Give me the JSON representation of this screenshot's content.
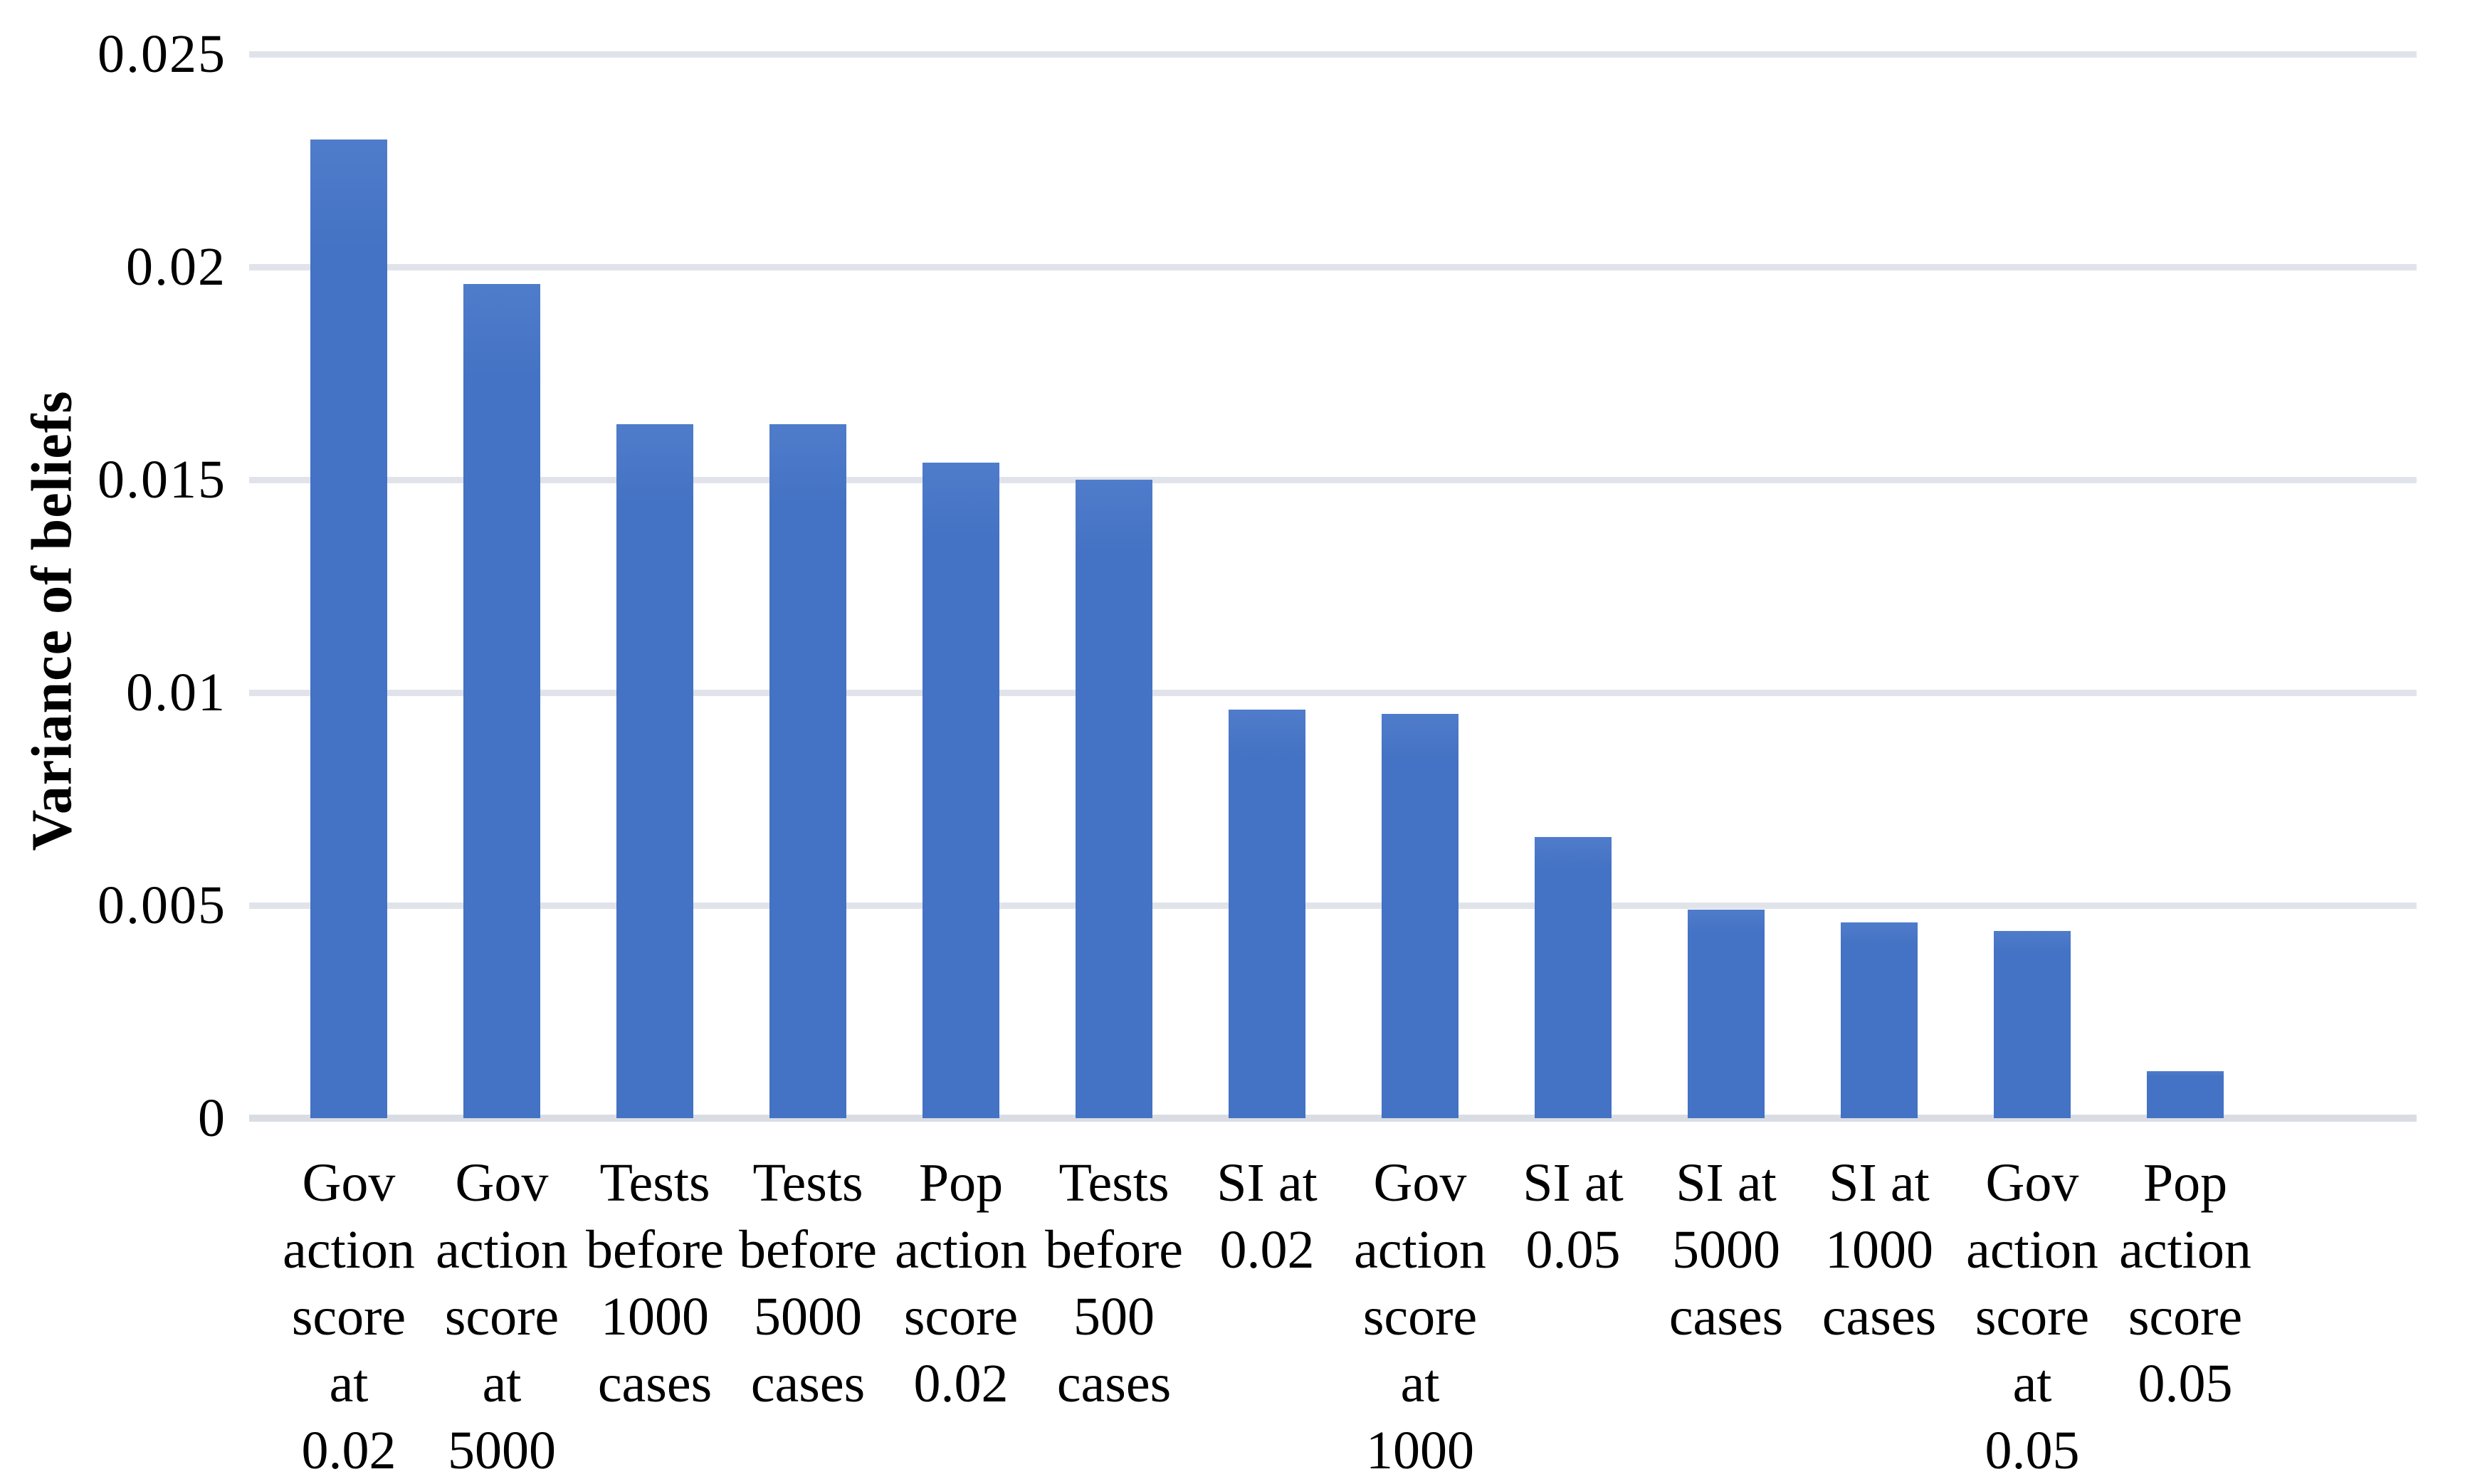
{
  "chart_data": {
    "type": "bar",
    "title": "",
    "ylabel": "Variance of beliefs",
    "xlabel": "",
    "ylim": [
      0,
      0.025
    ],
    "yticks": [
      0,
      0.005,
      0.01,
      0.015,
      0.02,
      0.025
    ],
    "ytick_labels": [
      "0",
      "0.005",
      "0.01",
      "0.015",
      "0.02",
      "0.025"
    ],
    "grid": "horizontal-only",
    "legend_position": "none",
    "bar_color": "#4472C4",
    "gridline_color": "#E0E4EA",
    "axis_line_color": "#D9DDE3",
    "text_color": "#000000",
    "categories": [
      "Gov action score at 0.02",
      "Gov action score at 5000",
      "Tests before 1000 cases",
      "Tests before 5000 cases",
      "Pop action score 0.02",
      "Tests before 500 cases",
      "SI at 0.02",
      "Gov action score at 1000",
      "SI at 0.05",
      "SI at 5000 cases",
      "SI at 1000 cases",
      "Gov action score at 0.05",
      "Pop action score 0.05"
    ],
    "category_label_lines": [
      [
        "Gov",
        "action",
        "score",
        "at",
        "0.02"
      ],
      [
        "Gov",
        "action",
        "score",
        "at",
        "5000"
      ],
      [
        "Tests",
        "before",
        "1000",
        "cases"
      ],
      [
        "Tests",
        "before",
        "5000",
        "cases"
      ],
      [
        "Pop",
        "action",
        "score",
        "0.02"
      ],
      [
        "Tests",
        "before",
        "500",
        "cases"
      ],
      [
        "SI at",
        "0.02"
      ],
      [
        "Gov",
        "action",
        "score",
        "at",
        "1000"
      ],
      [
        "SI at",
        "0.05"
      ],
      [
        "SI at",
        "5000",
        "cases"
      ],
      [
        "SI at",
        "1000",
        "cases"
      ],
      [
        "Gov",
        "action",
        "score",
        "at",
        "0.05"
      ],
      [
        "Pop",
        "action",
        "score",
        "0.05"
      ]
    ],
    "values": [
      0.023,
      0.0196,
      0.0163,
      0.0163,
      0.0154,
      0.015,
      0.0096,
      0.0095,
      0.0066,
      0.0049,
      0.0046,
      0.0044,
      0.0011
    ]
  }
}
